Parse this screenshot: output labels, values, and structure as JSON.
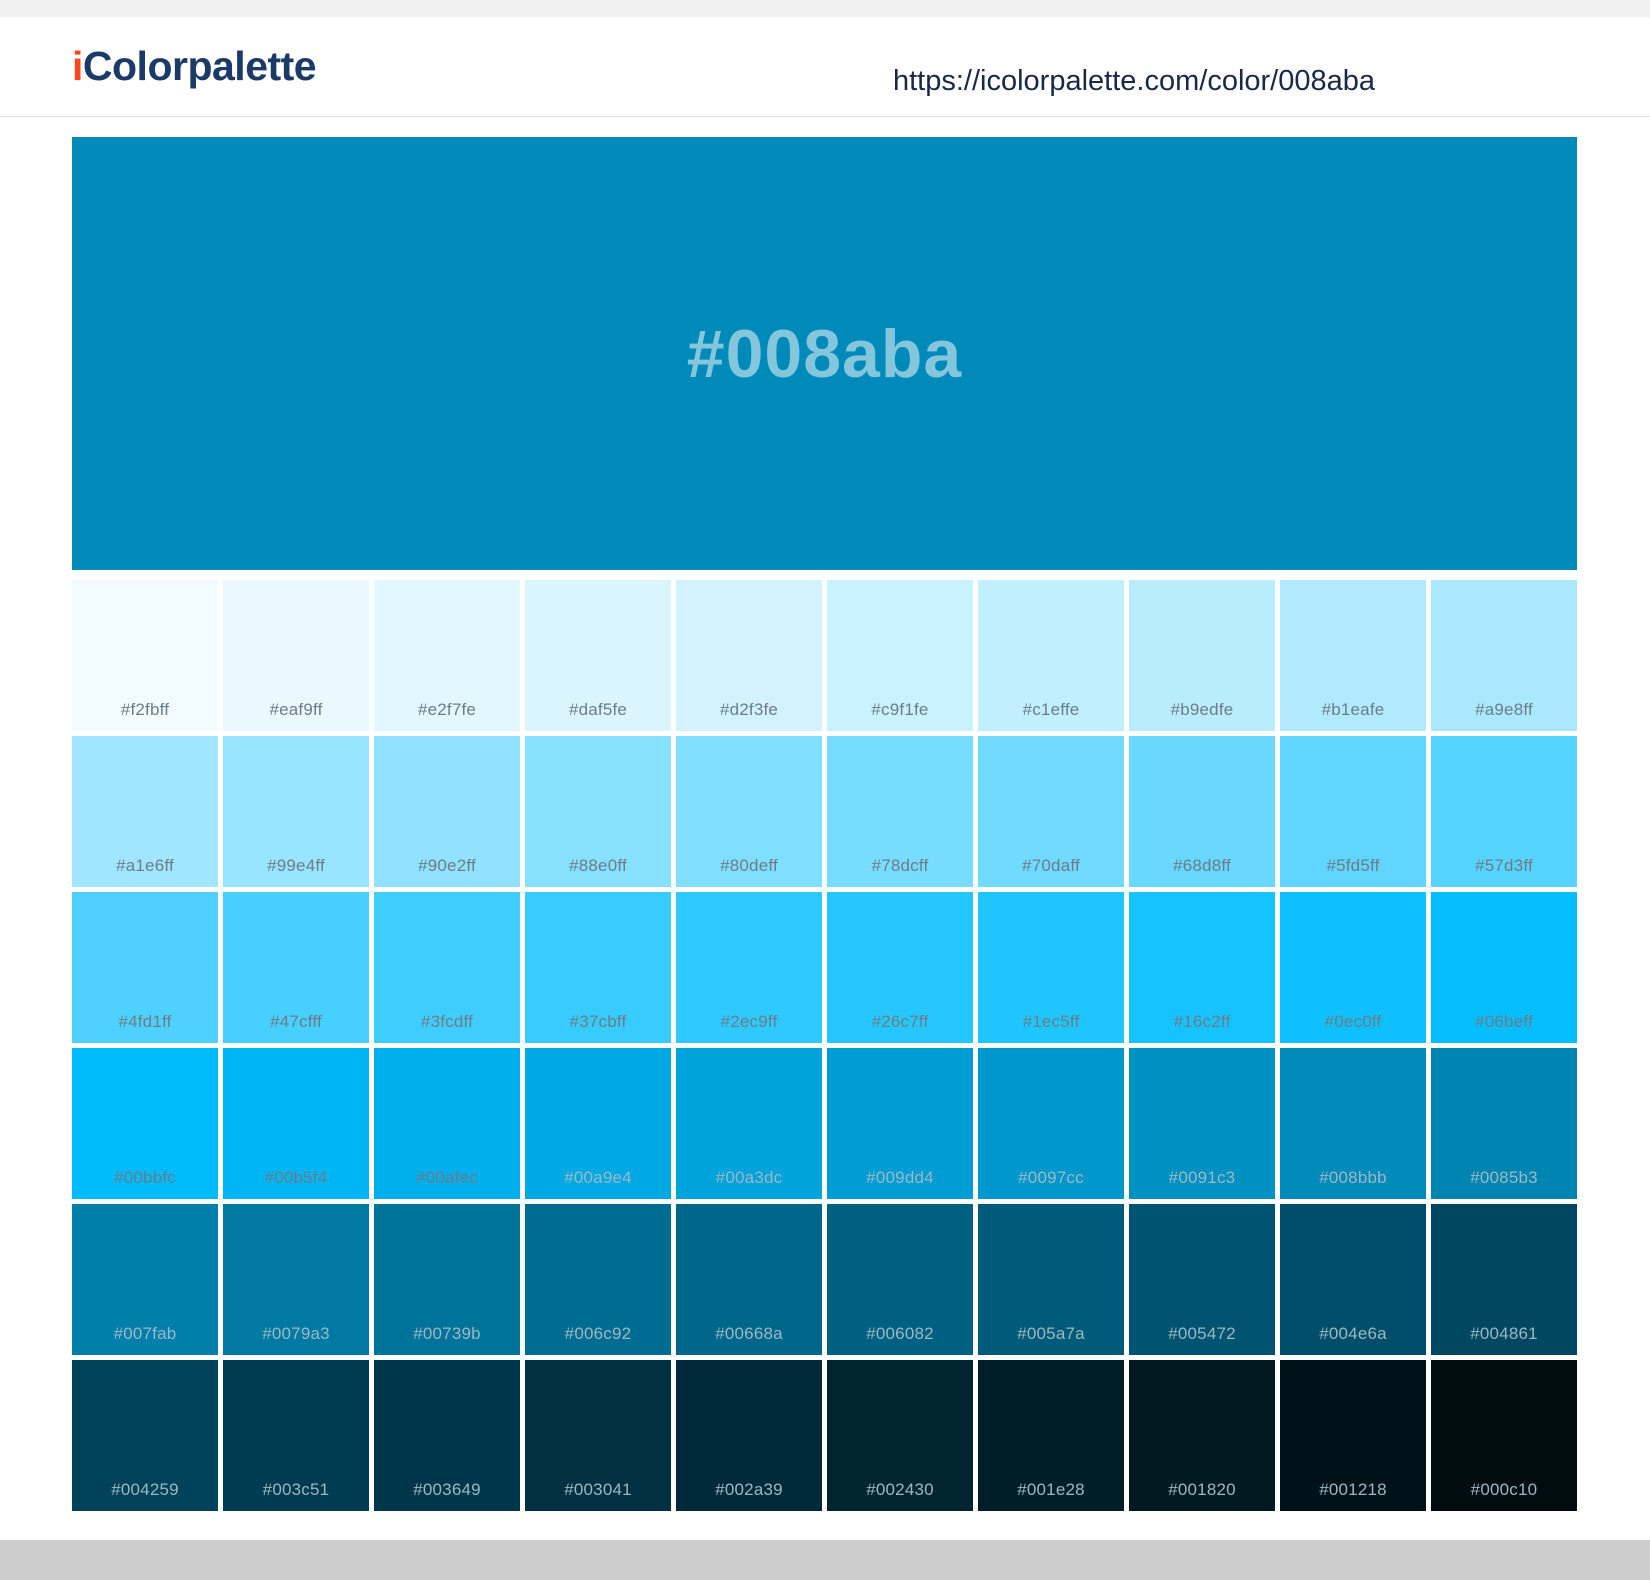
{
  "header": {
    "logo_prefix": "i",
    "logo_rest": "Colorpalette",
    "url": "https://icolorpalette.com/color/008aba"
  },
  "hero": {
    "hex": "#008aba"
  },
  "shades": {
    "rows": [
      [
        "#f2fbff",
        "#eaf9ff",
        "#e2f7fe",
        "#daf5fe",
        "#d2f3fe",
        "#c9f1fe",
        "#c1effe",
        "#b9edfe",
        "#b1eafe",
        "#a9e8ff"
      ],
      [
        "#a1e6ff",
        "#99e4ff",
        "#90e2ff",
        "#88e0ff",
        "#80deff",
        "#78dcff",
        "#70daff",
        "#68d8ff",
        "#5fd5ff",
        "#57d3ff"
      ],
      [
        "#4fd1ff",
        "#47cfff",
        "#3fcdff",
        "#37cbff",
        "#2ec9ff",
        "#26c7ff",
        "#1ec5ff",
        "#16c2ff",
        "#0ec0ff",
        "#06beff"
      ],
      [
        "#00bbfc",
        "#00b5f4",
        "#00afec",
        "#00a9e4",
        "#00a3dc",
        "#009dd4",
        "#0097cc",
        "#0091c3",
        "#008bbb",
        "#0085b3"
      ],
      [
        "#007fab",
        "#0079a3",
        "#00739b",
        "#006c92",
        "#00668a",
        "#006082",
        "#005a7a",
        "#005472",
        "#004e6a",
        "#004861"
      ],
      [
        "#004259",
        "#003c51",
        "#003649",
        "#003041",
        "#002a39",
        "#002430",
        "#001e28",
        "#001820",
        "#001218",
        "#000c10"
      ]
    ]
  },
  "colors": {
    "accent_orange": "#fc471e",
    "logo_navy": "#1b3a66",
    "url_text": "#1a2747",
    "hero_bg": "#008aba",
    "hero_text": "#84c6dc",
    "label_dark": "#6c7d87",
    "label_light": "#9cb8c3",
    "top_strip": "#f1f1f1",
    "header_border": "#e4e4e4",
    "bottom_bar": "#cdcdcd"
  }
}
